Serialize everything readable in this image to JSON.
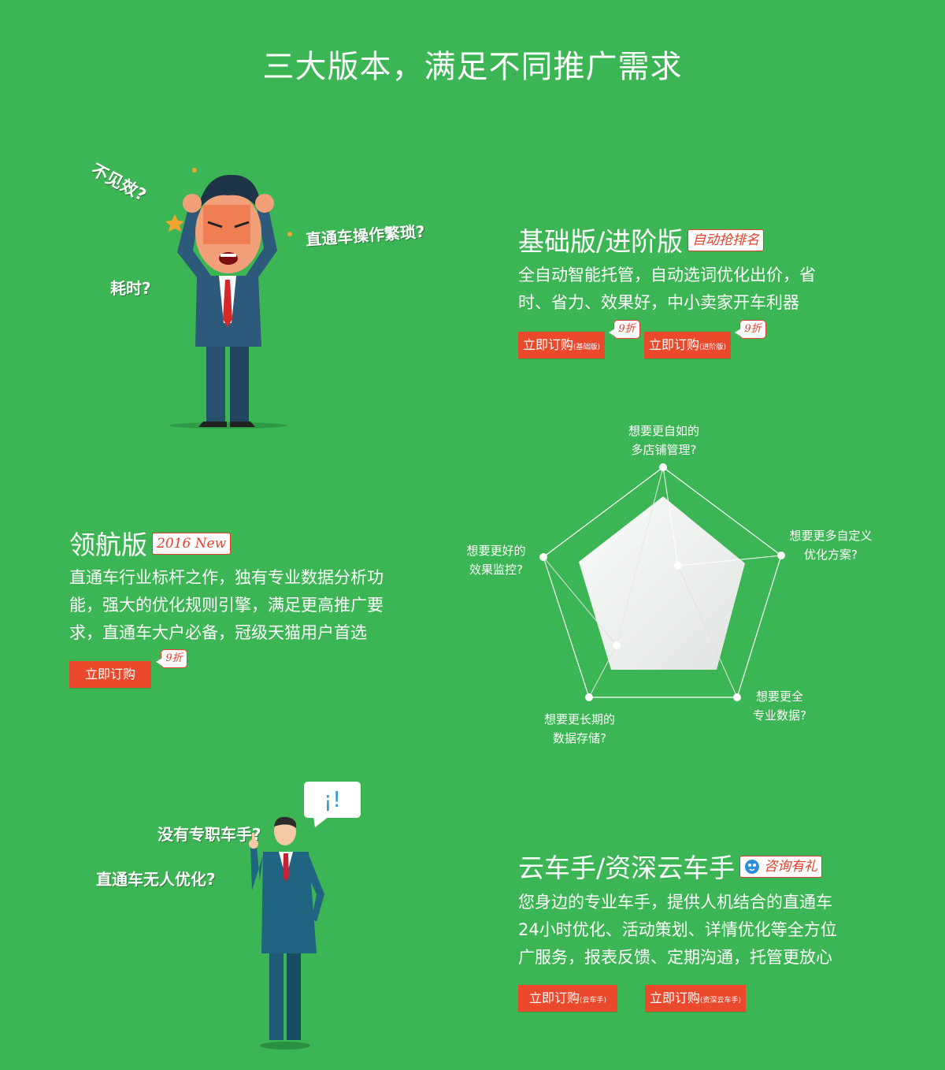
{
  "title": "三大版本，满足不同推广需求",
  "basic": {
    "title": "基础版/进阶版",
    "tag": "自动抢排名",
    "desc1": "全自动智能托管，自动选词优化出价，省",
    "desc2": "时、省力、效果好，中小卖家开车利器",
    "btn1_main": "立即订购",
    "btn1_sub": "(基础版)",
    "btn2_main": "立即订购",
    "btn2_sub": "(进阶版)",
    "discount": "9折"
  },
  "pilot": {
    "title": "领航版",
    "tag": "2016 New",
    "desc1": "直通车行业标杆之作，独有专业数据分析功",
    "desc2": "能，强大的优化规则引擎，满足更高推广要",
    "desc3": "求，直通车大户必备，冠级天猫用户首选",
    "btn": "立即订购",
    "discount": "9折"
  },
  "cloud": {
    "title": "云车手/资深云车手",
    "tag": "咨询有礼",
    "desc1": "您身边的专业车手，提供人机结合的直通车",
    "desc2": "24小时优化、活动策划、详情优化等全方位",
    "desc3": "广服务，报表反馈、定期沟通，托管更放心",
    "btn1_main": "立即订购",
    "btn1_sub": "(云车手)",
    "btn2_main": "立即订购",
    "btn2_sub": "(资深云车手)"
  },
  "questions1": {
    "q1": "不见效?",
    "q2": "直通车操作繁琐?",
    "q3": "耗时?"
  },
  "questions2": {
    "q1": "没有专职车手?",
    "q2": "直通车无人优化?",
    "speech": "¡!"
  },
  "radar": {
    "top1": "想要更自如的",
    "top2": "多店铺管理?",
    "right1": "想要更多自定义",
    "right2": "优化方案?",
    "br1": "想要更全",
    "br2": "专业数据?",
    "bl1": "想要更长期的",
    "bl2": "数据存储?",
    "left1": "想要更好的",
    "left2": "效果监控?"
  },
  "colors": {
    "background": "#3cb654",
    "button": "#ea4a2b",
    "tag": "#e8402c"
  }
}
